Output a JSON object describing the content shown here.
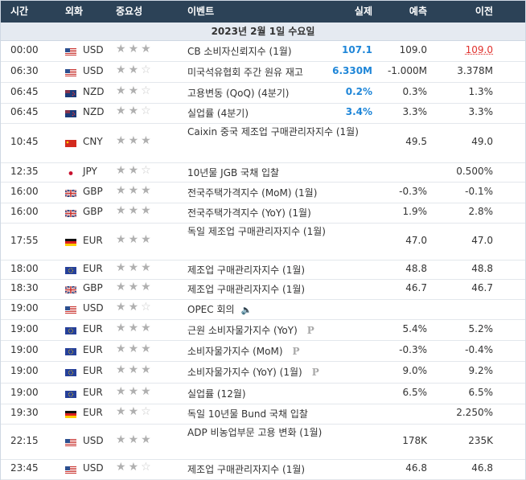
{
  "header": {
    "time": "시간",
    "currency": "외화",
    "importance": "중요성",
    "event": "이벤트",
    "actual": "실제",
    "forecast": "예측",
    "previous": "이전"
  },
  "date_banner": "2023년 2월 1일 수요일",
  "colors": {
    "header_bg": "#2c4257",
    "banner_bg": "#e5eaf1",
    "actual_blue": "#1f86d8",
    "previous_red": "#e0312d"
  },
  "rows": [
    {
      "time": "00:00",
      "flag": "us-flag",
      "currency": "USD",
      "stars": 3,
      "event": "CB 소비자신뢰지수 (1월)",
      "icon": "",
      "actual": "107.1",
      "forecast": "109.0",
      "previous": "109.0",
      "previous_revised": true
    },
    {
      "time": "06:30",
      "flag": "us-flag",
      "currency": "USD",
      "stars": 2,
      "event": "미국석유협회 주간 원유 재고",
      "icon": "",
      "actual": "6.330M",
      "forecast": "-1.000M",
      "previous": "3.378M"
    },
    {
      "time": "06:45",
      "flag": "nz-flag",
      "currency": "NZD",
      "stars": 2,
      "event": "고용변동 (QoQ) (4분기)",
      "icon": "",
      "actual": "0.2%",
      "forecast": "0.3%",
      "previous": "1.3%"
    },
    {
      "time": "06:45",
      "flag": "nz-flag",
      "currency": "NZD",
      "stars": 2,
      "event": "실업률 (4분기)",
      "icon": "",
      "actual": "3.4%",
      "forecast": "3.3%",
      "previous": "3.3%"
    },
    {
      "time": "10:45",
      "flag": "cn-flag",
      "currency": "CNY",
      "stars": 3,
      "event": "Caixin 중국 제조업 구매관리자지수 (1월)",
      "icon": "",
      "actual": "",
      "forecast": "49.5",
      "previous": "49.0"
    },
    {
      "time": "12:35",
      "flag": "jp-flag",
      "currency": "JPY",
      "stars": 2,
      "event": "10년물 JGB 국채 입찰",
      "icon": "",
      "actual": "",
      "forecast": "",
      "previous": "0.500%"
    },
    {
      "time": "16:00",
      "flag": "gb-flag",
      "currency": "GBP",
      "stars": 3,
      "event": "전국주택가격지수 (MoM) (1월)",
      "icon": "",
      "actual": "",
      "forecast": "-0.3%",
      "previous": "-0.1%"
    },
    {
      "time": "16:00",
      "flag": "gb-flag",
      "currency": "GBP",
      "stars": 3,
      "event": "전국주택가격지수 (YoY) (1월)",
      "icon": "",
      "actual": "",
      "forecast": "1.9%",
      "previous": "2.8%"
    },
    {
      "time": "17:55",
      "flag": "de-flag",
      "currency": "EUR",
      "stars": 3,
      "event": "독일 제조업 구매관리자지수 (1월)",
      "icon": "",
      "actual": "",
      "forecast": "47.0",
      "previous": "47.0"
    },
    {
      "time": "18:00",
      "flag": "eu-flag",
      "currency": "EUR",
      "stars": 3,
      "event": "제조업 구매관리자지수 (1월)",
      "icon": "",
      "actual": "",
      "forecast": "48.8",
      "previous": "48.8"
    },
    {
      "time": "18:30",
      "flag": "gb-flag",
      "currency": "GBP",
      "stars": 3,
      "event": "제조업 구매관리자지수 (1월)",
      "icon": "",
      "actual": "",
      "forecast": "46.7",
      "previous": "46.7"
    },
    {
      "time": "19:00",
      "flag": "us-flag",
      "currency": "USD",
      "stars": 2,
      "event": "OPEC 회의",
      "icon": "speaker-icon",
      "actual": "",
      "forecast": "",
      "previous": ""
    },
    {
      "time": "19:00",
      "flag": "eu-flag",
      "currency": "EUR",
      "stars": 3,
      "event": "근원 소비자물가지수 (YoY)",
      "icon": "preliminary-icon",
      "actual": "",
      "forecast": "5.4%",
      "previous": "5.2%"
    },
    {
      "time": "19:00",
      "flag": "eu-flag",
      "currency": "EUR",
      "stars": 3,
      "event": "소비자물가지수 (MoM)",
      "icon": "preliminary-icon",
      "actual": "",
      "forecast": "-0.3%",
      "previous": "-0.4%"
    },
    {
      "time": "19:00",
      "flag": "eu-flag",
      "currency": "EUR",
      "stars": 3,
      "event": "소비자물가지수 (YoY) (1월)",
      "icon": "preliminary-icon",
      "actual": "",
      "forecast": "9.0%",
      "previous": "9.2%"
    },
    {
      "time": "19:00",
      "flag": "eu-flag",
      "currency": "EUR",
      "stars": 3,
      "event": "실업률 (12월)",
      "icon": "",
      "actual": "",
      "forecast": "6.5%",
      "previous": "6.5%"
    },
    {
      "time": "19:30",
      "flag": "de-flag",
      "currency": "EUR",
      "stars": 2,
      "event": "독일 10년물 Bund 국채 입찰",
      "icon": "",
      "actual": "",
      "forecast": "",
      "previous": "2.250%"
    },
    {
      "time": "22:15",
      "flag": "us-flag",
      "currency": "USD",
      "stars": 3,
      "event": "ADP 비농업부문 고용 변화 (1월)",
      "icon": "",
      "actual": "",
      "forecast": "178K",
      "previous": "235K"
    },
    {
      "time": "23:45",
      "flag": "us-flag",
      "currency": "USD",
      "stars": 2,
      "event": "제조업 구매관리자지수 (1월)",
      "icon": "",
      "actual": "",
      "forecast": "46.8",
      "previous": "46.8"
    }
  ],
  "icon_glyphs": {
    "speaker-icon": "🔈",
    "preliminary-icon": "P"
  }
}
